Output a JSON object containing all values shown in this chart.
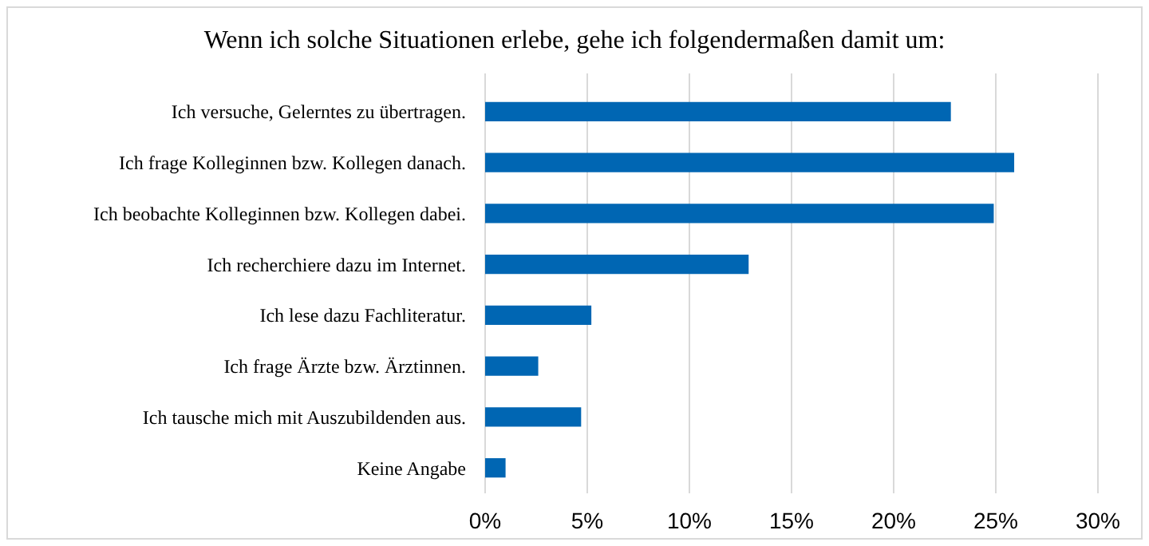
{
  "chart_data": {
    "type": "bar",
    "orientation": "horizontal",
    "title": "Wenn ich solche Situationen erlebe, gehe ich folgendermaßen damit um:",
    "categories": [
      "Ich versuche, Gelerntes zu übertragen.",
      "Ich frage Kolleginnen bzw. Kollegen danach.",
      "Ich beobachte Kolleginnen bzw. Kollegen dabei.",
      "Ich recherchiere dazu im Internet.",
      "Ich lese dazu Fachliteratur.",
      "Ich frage Ärzte bzw. Ärztinnen.",
      "Ich tausche mich mit Auszubildenden aus.",
      "Keine Angabe"
    ],
    "values": [
      22.8,
      25.9,
      24.9,
      12.9,
      5.2,
      2.6,
      4.7,
      1.0
    ],
    "color": "#0066b3",
    "xlim": [
      0,
      30
    ],
    "xticks": [
      {
        "value": 0,
        "label": "0%"
      },
      {
        "value": 5,
        "label": "5%"
      },
      {
        "value": 10,
        "label": "10%"
      },
      {
        "value": 15,
        "label": "15%"
      },
      {
        "value": 20,
        "label": "20%"
      },
      {
        "value": 25,
        "label": "25%"
      },
      {
        "value": 30,
        "label": "30%"
      }
    ],
    "grid": "x"
  }
}
